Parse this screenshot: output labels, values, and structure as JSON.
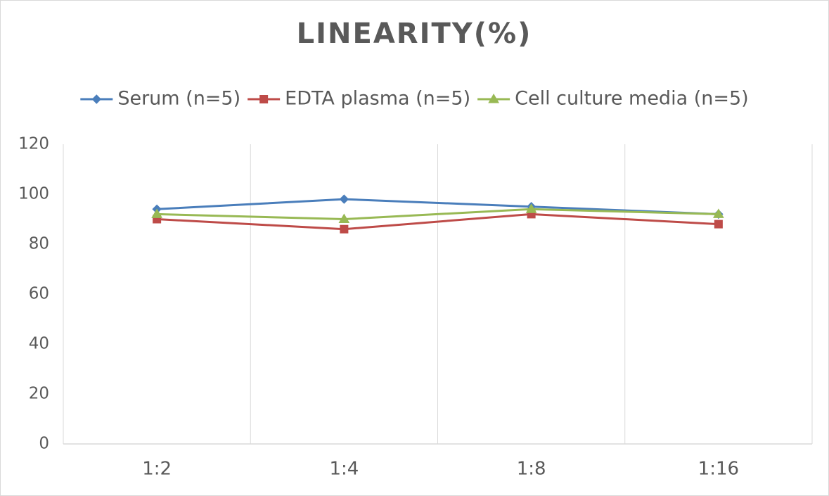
{
  "chart_data": {
    "type": "line",
    "title": "LINEARITY(%)",
    "categories": [
      "1:2",
      "1:4",
      "1:8",
      "1:16"
    ],
    "series": [
      {
        "name": "Serum (n=5)",
        "color": "#4a7ebb",
        "marker": "diamond",
        "values": [
          94,
          98,
          95,
          92
        ]
      },
      {
        "name": "EDTA plasma (n=5)",
        "color": "#be4b48",
        "marker": "square",
        "values": [
          90,
          86,
          92,
          88
        ]
      },
      {
        "name": "Cell culture media (n=5)",
        "color": "#98b954",
        "marker": "triangle",
        "values": [
          92,
          90,
          94,
          92
        ]
      }
    ],
    "ylim": [
      0,
      120
    ],
    "yticks": [
      0,
      20,
      40,
      60,
      80,
      100,
      120
    ],
    "legend": "top",
    "grid": "vertical"
  }
}
